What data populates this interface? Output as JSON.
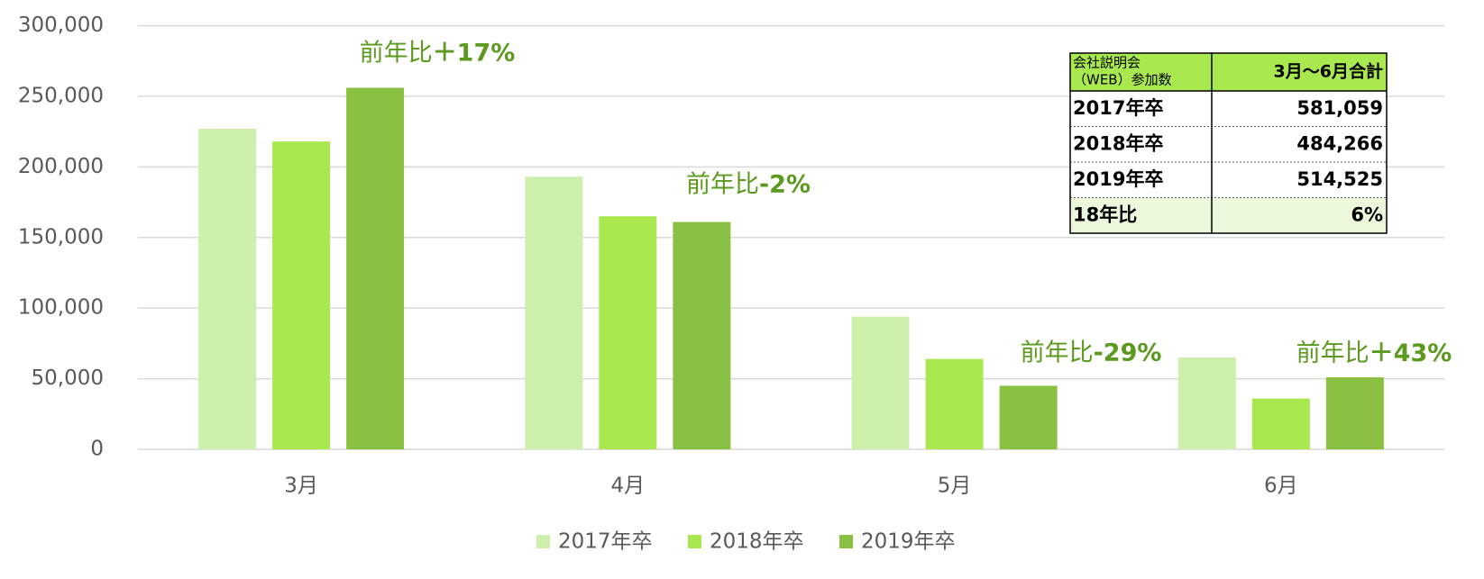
{
  "chart_data": {
    "type": "bar",
    "categories": [
      "3月",
      "4月",
      "5月",
      "6月"
    ],
    "series": [
      {
        "name": "2017年卒",
        "color": "#cdf0ac",
        "values": [
          227000,
          193000,
          94000,
          65000
        ]
      },
      {
        "name": "2018年卒",
        "color": "#a9e84f",
        "values": [
          218000,
          165000,
          64000,
          36000
        ]
      },
      {
        "name": "2019年卒",
        "color": "#8bc142",
        "values": [
          256000,
          161000,
          45000,
          51000
        ]
      }
    ],
    "ylim": [
      0,
      300000
    ],
    "yticks": [
      0,
      {
        "value": 50000,
        "label": "50,000"
      },
      {
        "value": 100000,
        "label": "100,000"
      },
      {
        "value": 150000,
        "label": "150,000"
      },
      {
        "value": 200000,
        "label": "200,000"
      },
      {
        "value": 250000,
        "label": "250,000"
      },
      {
        "value": 300000,
        "label": "300,000"
      }
    ],
    "grid": true,
    "legend": "bottom",
    "annotations": [
      {
        "prefix": "前年比",
        "change": "＋17%"
      },
      {
        "prefix": "前年比",
        "change": "-2%"
      },
      {
        "prefix": "前年比",
        "change": "-29%"
      },
      {
        "prefix": "前年比",
        "change": "＋43%"
      }
    ]
  },
  "table": {
    "header_lines": [
      "会社説明会",
      "（WEB）参加数"
    ],
    "header_total": "3月～6月合計",
    "rows": [
      [
        "2017年卒",
        "581,059"
      ],
      [
        "2018年卒",
        "484,266"
      ],
      [
        "2019年卒",
        "514,525"
      ],
      [
        "18年比",
        "6%"
      ]
    ]
  }
}
